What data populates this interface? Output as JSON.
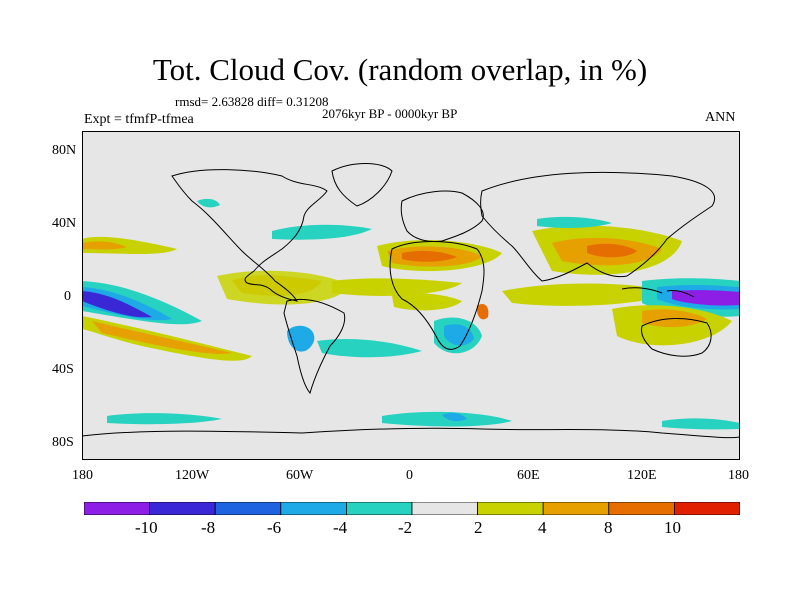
{
  "title": "Tot. Cloud Cov. (random overlap, in %)",
  "stats": "rmsd= 2.63828 diff= 0.31208",
  "period": "2076kyr BP - 0000kyr BP",
  "experiment": "Expt = tfmfP-tfmea",
  "season": "ANN",
  "map": {
    "projection": "cylindrical equidistant",
    "lon_range": [
      -180,
      180
    ],
    "lat_range": [
      -90,
      90
    ],
    "background_color": "#e6e6e6",
    "coastline_color": "#000000",
    "y_ticks": [
      "80N",
      "40N",
      "0",
      "40S",
      "80S"
    ],
    "x_ticks": [
      "180",
      "120W",
      "60W",
      "0",
      "60E",
      "120E",
      "180"
    ]
  },
  "colorbar": {
    "colors": [
      "#8c1ee6",
      "#3a28d6",
      "#1f63e0",
      "#1eaae6",
      "#28d2c0",
      "#e6e6e6",
      "#c8d200",
      "#e6a000",
      "#e66e00",
      "#e02000"
    ],
    "labels": [
      "-10",
      "-8",
      "-6",
      "-4",
      "-2",
      "2",
      "4",
      "8",
      "10"
    ]
  }
}
